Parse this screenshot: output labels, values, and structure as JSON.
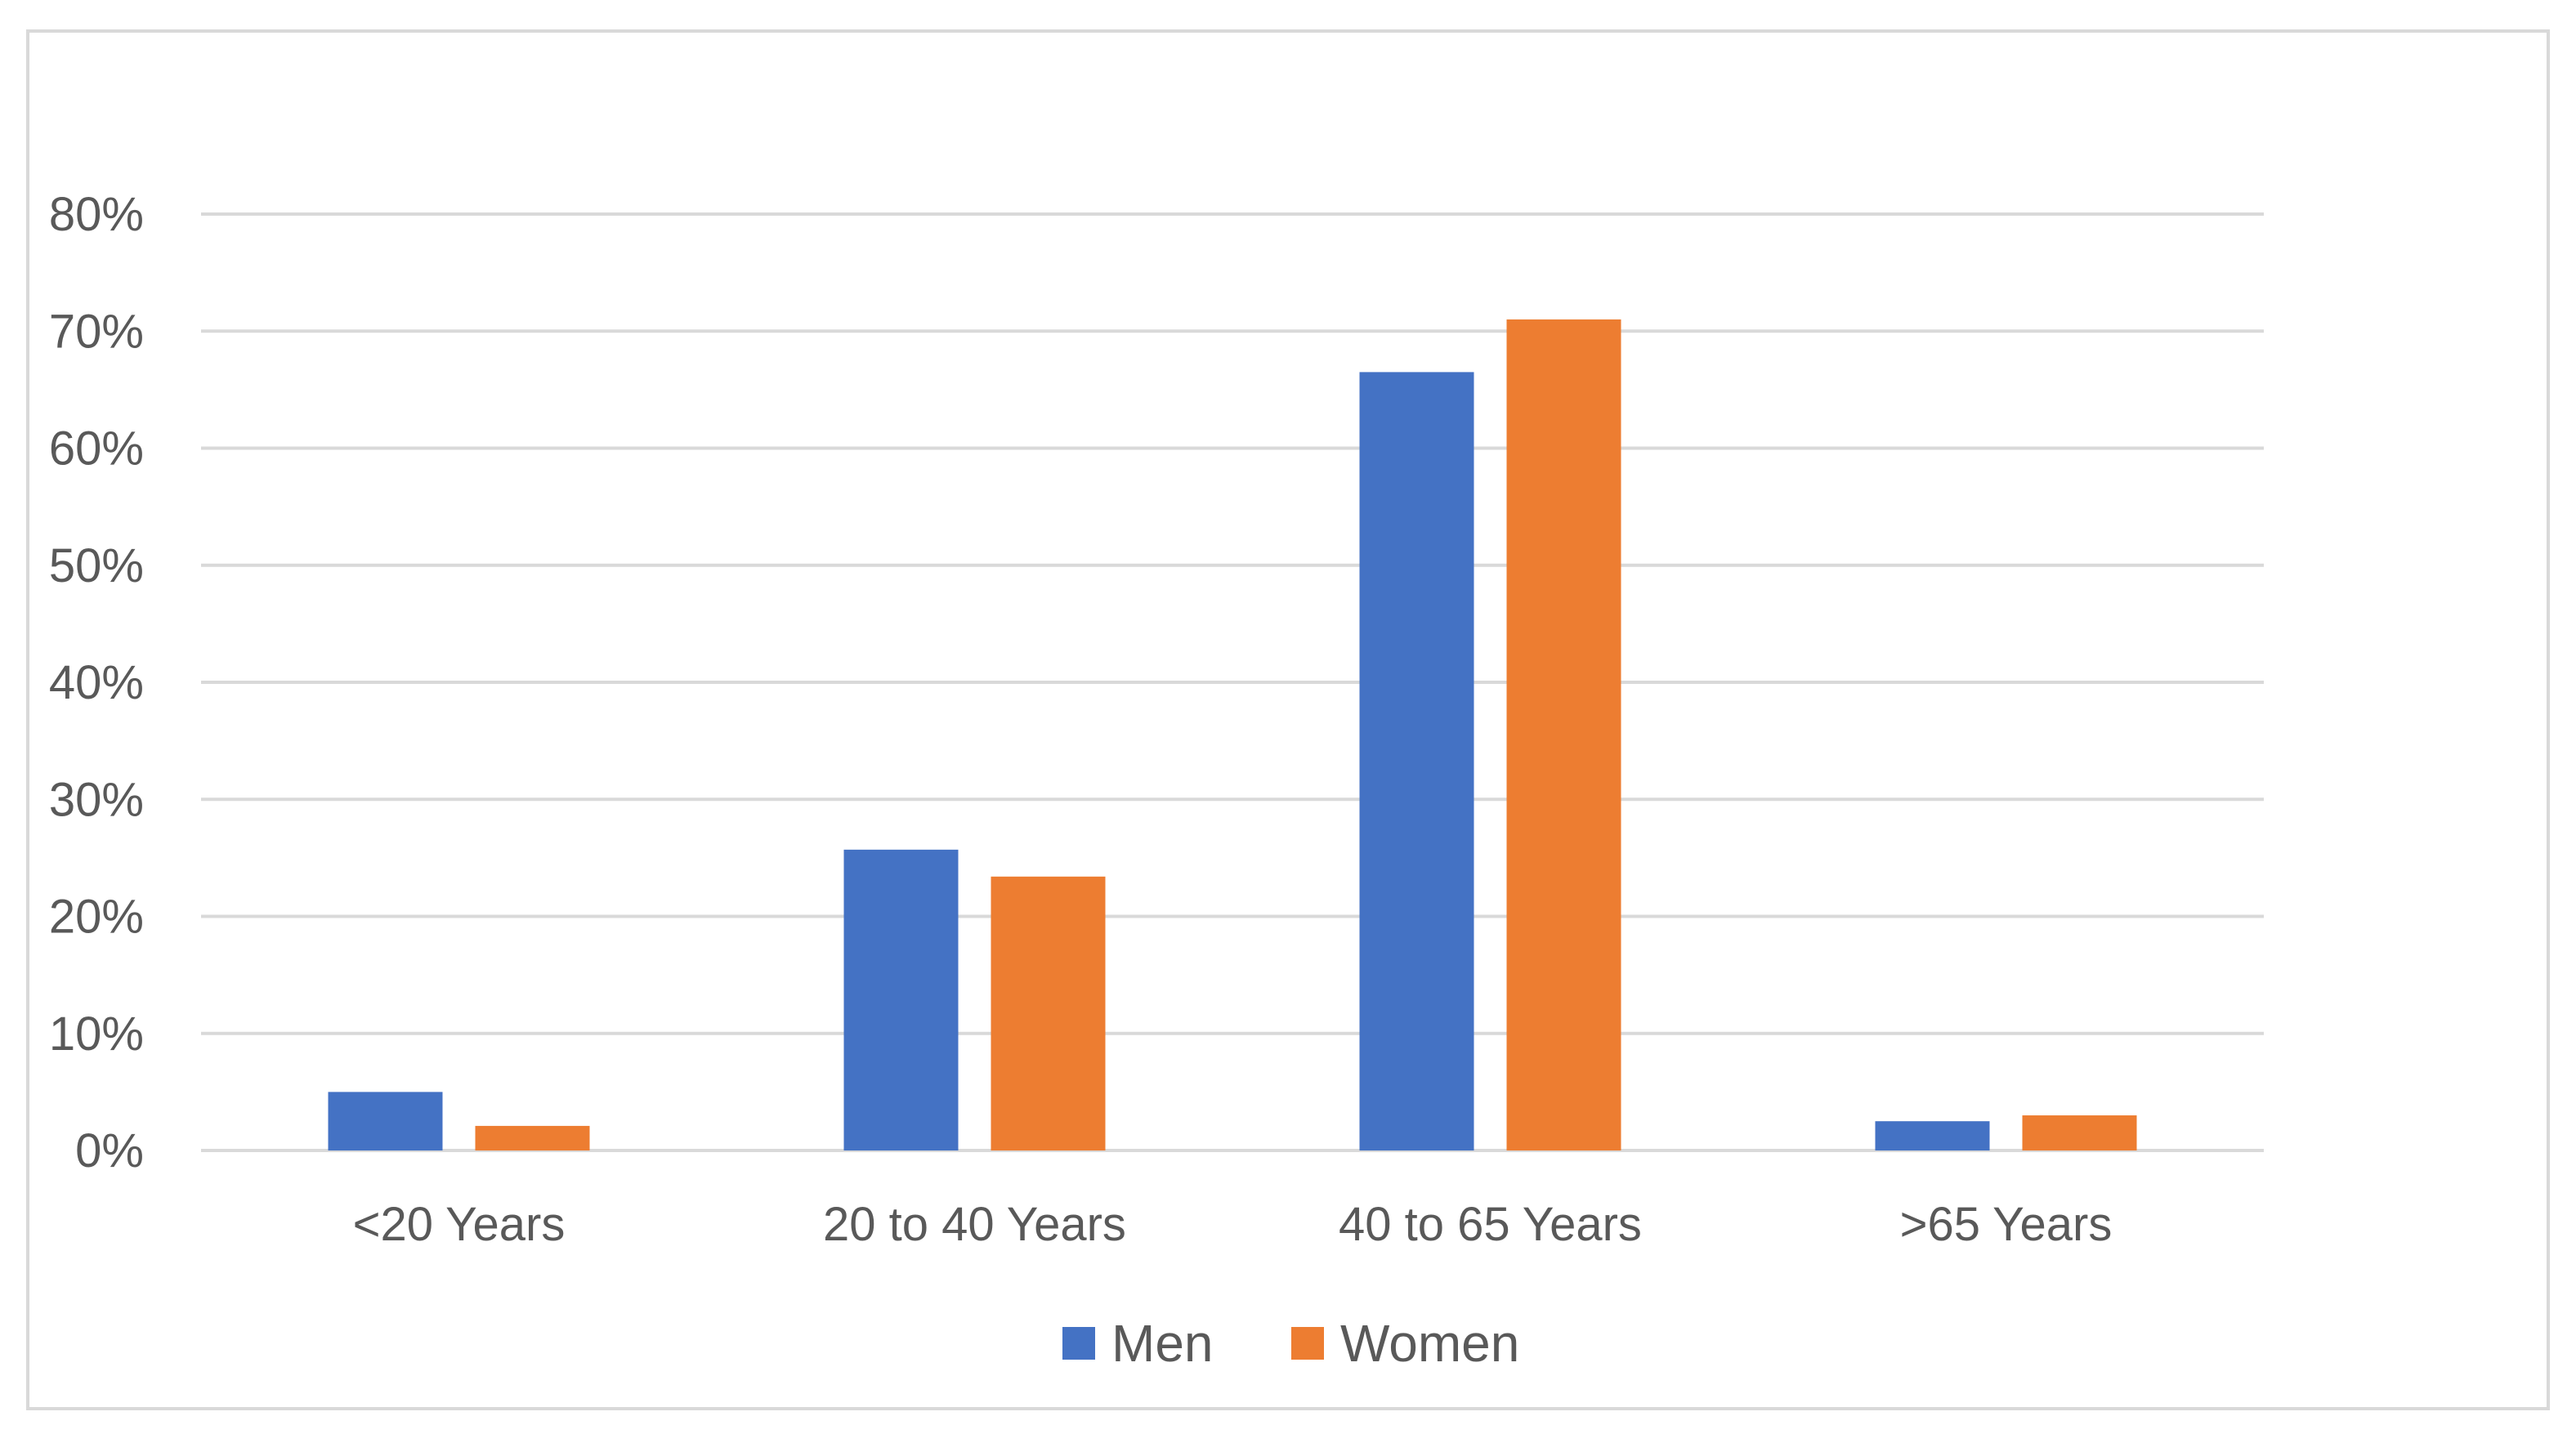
{
  "chart_data": {
    "type": "bar",
    "title": "",
    "xlabel": "",
    "ylabel": "",
    "categories": [
      "<20 Years",
      "20 to 40 Years",
      "40 to 65 Years",
      ">65 Years"
    ],
    "series": [
      {
        "name": "Men",
        "color": "#4472c4",
        "values": [
          5,
          25.7,
          66.5,
          2.5
        ]
      },
      {
        "name": "Women",
        "color": "#ed7d31",
        "values": [
          2.1,
          23.4,
          71,
          3
        ]
      }
    ],
    "ylim": [
      0,
      80
    ],
    "yticks": [
      "0%",
      "10%",
      "20%",
      "30%",
      "40%",
      "50%",
      "60%",
      "70%",
      "80%"
    ],
    "grid": true,
    "legend": "bottom"
  }
}
